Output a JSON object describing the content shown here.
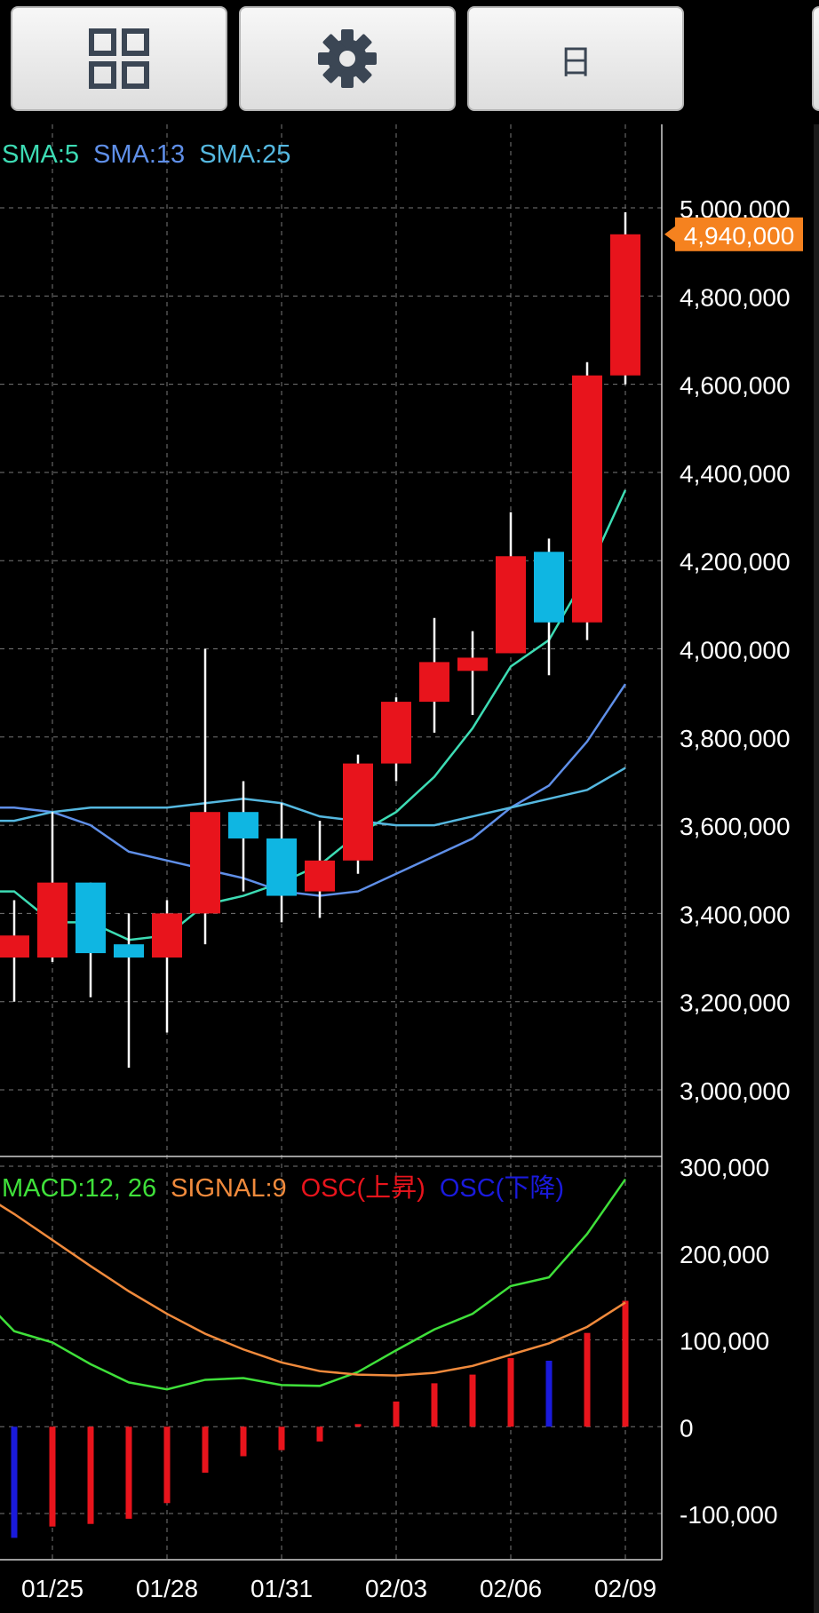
{
  "toolbar": {
    "grid_button_icon": "grid-icon",
    "settings_button_icon": "gear-icon",
    "period_label": "日"
  },
  "colors": {
    "up_candle": "#e8141c",
    "down_candle": "#0fb6e2",
    "sma5": "#3ddcb4",
    "sma13": "#5f8fe8",
    "sma25": "#55b8e0",
    "macd": "#3fe03a",
    "signal": "#f08a3c",
    "osc_up": "#e8141c",
    "osc_down": "#1a1adc",
    "last_price_bg": "#f5821f"
  },
  "price_panel": {
    "legend": [
      {
        "label": "SMA:5",
        "color": "#3ddcb4"
      },
      {
        "label": "SMA:13",
        "color": "#5f8fe8"
      },
      {
        "label": "SMA:25",
        "color": "#55b8e0"
      }
    ],
    "y_ticks": [
      "5,000,000",
      "4,800,000",
      "4,600,000",
      "4,400,000",
      "4,200,000",
      "4,000,000",
      "3,800,000",
      "3,600,000",
      "3,400,000",
      "3,200,000",
      "3,000,000"
    ],
    "last_price_label": "4,940,000"
  },
  "macd_panel": {
    "legend": [
      {
        "label": "MACD:12, 26",
        "color": "#3fe03a"
      },
      {
        "label": "SIGNAL:9",
        "color": "#f08a3c"
      },
      {
        "label": "OSC(上昇)",
        "color": "#e8141c"
      },
      {
        "label": "OSC(下降)",
        "color": "#1a1adc"
      }
    ],
    "y_ticks": [
      "300,000",
      "200,000",
      "100,000",
      "0",
      "-100,000"
    ]
  },
  "x_ticks": [
    "01/25",
    "01/28",
    "01/31",
    "02/03",
    "02/06",
    "02/09"
  ],
  "chart_data": [
    {
      "type": "candlestick",
      "title": "",
      "ylim": [
        2850000,
        5100000
      ],
      "x_tick_labels": [
        "01/25",
        "01/28",
        "01/31",
        "02/03",
        "02/06",
        "02/09"
      ],
      "candles": [
        {
          "open": 3300000,
          "high": 3430000,
          "low": 3200000,
          "close": 3350000
        },
        {
          "open": 3300000,
          "high": 3630000,
          "low": 3290000,
          "close": 3470000
        },
        {
          "open": 3470000,
          "high": 3470000,
          "low": 3210000,
          "close": 3310000
        },
        {
          "open": 3330000,
          "high": 3400000,
          "low": 3050000,
          "close": 3300000
        },
        {
          "open": 3300000,
          "high": 3430000,
          "low": 3130000,
          "close": 3400000
        },
        {
          "open": 3400000,
          "high": 4000000,
          "low": 3330000,
          "close": 3630000
        },
        {
          "open": 3630000,
          "high": 3700000,
          "low": 3450000,
          "close": 3570000
        },
        {
          "open": 3570000,
          "high": 3650000,
          "low": 3380000,
          "close": 3440000
        },
        {
          "open": 3450000,
          "high": 3610000,
          "low": 3390000,
          "close": 3520000
        },
        {
          "open": 3520000,
          "high": 3760000,
          "low": 3490000,
          "close": 3740000
        },
        {
          "open": 3740000,
          "high": 3890000,
          "low": 3700000,
          "close": 3880000
        },
        {
          "open": 3880000,
          "high": 4070000,
          "low": 3810000,
          "close": 3970000
        },
        {
          "open": 3950000,
          "high": 4040000,
          "low": 3850000,
          "close": 3980000
        },
        {
          "open": 3990000,
          "high": 4310000,
          "low": 3990000,
          "close": 4210000
        },
        {
          "open": 4220000,
          "high": 4250000,
          "low": 3940000,
          "close": 4060000
        },
        {
          "open": 4060000,
          "high": 4650000,
          "low": 4020000,
          "close": 4620000
        },
        {
          "open": 4620000,
          "high": 4990000,
          "low": 4600000,
          "close": 4940000
        }
      ],
      "series": [
        {
          "name": "SMA:5",
          "values": [
            3450000,
            3380000,
            3380000,
            3340000,
            3350000,
            3420000,
            3440000,
            3470000,
            3510000,
            3580000,
            3630000,
            3710000,
            3820000,
            3960000,
            4020000,
            4170000,
            4360000
          ]
        },
        {
          "name": "SMA:13",
          "values": [
            3640000,
            3630000,
            3600000,
            3540000,
            3520000,
            3500000,
            3480000,
            3450000,
            3440000,
            3450000,
            3490000,
            3530000,
            3570000,
            3640000,
            3690000,
            3790000,
            3920000
          ]
        },
        {
          "name": "SMA:25",
          "values": [
            3610000,
            3630000,
            3640000,
            3640000,
            3640000,
            3650000,
            3660000,
            3650000,
            3620000,
            3610000,
            3600000,
            3600000,
            3620000,
            3640000,
            3660000,
            3680000,
            3730000
          ]
        }
      ]
    },
    {
      "type": "line",
      "title": "",
      "ylim": [
        -150000,
        310000
      ],
      "series": [
        {
          "name": "MACD:12, 26",
          "values": [
            110000,
            97000,
            72000,
            51000,
            43000,
            54000,
            56000,
            48000,
            47000,
            63000,
            88000,
            112000,
            130000,
            162000,
            172000,
            222000,
            285000
          ]
        },
        {
          "name": "SIGNAL:9",
          "values": [
            245000,
            215000,
            185000,
            156000,
            130000,
            107000,
            89000,
            74000,
            64000,
            60000,
            59000,
            62000,
            70000,
            83000,
            96000,
            115000,
            143000
          ]
        },
        {
          "name": "OSC(上昇)",
          "values": [
            null,
            -115000,
            -112000,
            -106000,
            -88000,
            -53000,
            -34000,
            -27000,
            -17000,
            3000,
            29000,
            50000,
            60000,
            79000,
            null,
            108000,
            145000
          ]
        },
        {
          "name": "OSC(下降)",
          "values": [
            -128000,
            null,
            null,
            null,
            null,
            null,
            null,
            null,
            null,
            null,
            null,
            null,
            null,
            null,
            76000,
            null,
            null
          ]
        }
      ]
    }
  ]
}
